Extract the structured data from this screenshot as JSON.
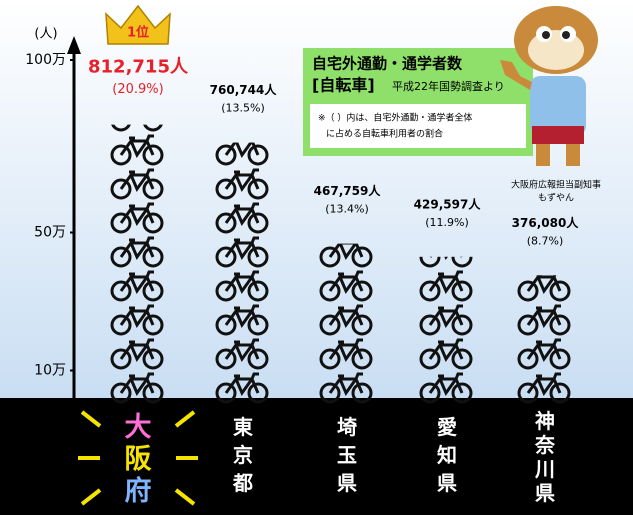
{
  "chart_data": {
    "type": "pictogram_bar",
    "title": "自宅外通勤・通学者数",
    "subtitle": "[自転車]",
    "source": "平成22年国勢調査より",
    "note": [
      "※（ ）内は、自宅外通勤・通学者全体",
      "に占める自転車利用者の割合"
    ],
    "y_unit": "(人)",
    "rank_badge": "1位",
    "mascot_caption": [
      "大阪府広報担当副知事",
      "もずやん"
    ],
    "categories": [
      "大阪府",
      "東京都",
      "埼玉県",
      "愛知県",
      "神奈川県"
    ],
    "values": [
      812715,
      760744,
      467759,
      429597,
      376080
    ],
    "value_labels": [
      "812,715人",
      "760,744人",
      "467,759人",
      "429,597人",
      "376,080人"
    ],
    "shares": [
      20.9,
      13.5,
      13.4,
      11.9,
      8.7
    ],
    "share_labels": [
      "(20.9%)",
      "(13.5%)",
      "(13.4%)",
      "(11.9%)",
      "(8.7%)"
    ],
    "color": "#111111",
    "highlight_color": "#e8202a",
    "ylim": [
      0,
      1000000
    ],
    "yticks": [
      {
        "value": 100000,
        "label": "10万"
      },
      {
        "value": 500000,
        "label": "50万"
      },
      {
        "value": 1000000,
        "label": "100万"
      }
    ]
  }
}
